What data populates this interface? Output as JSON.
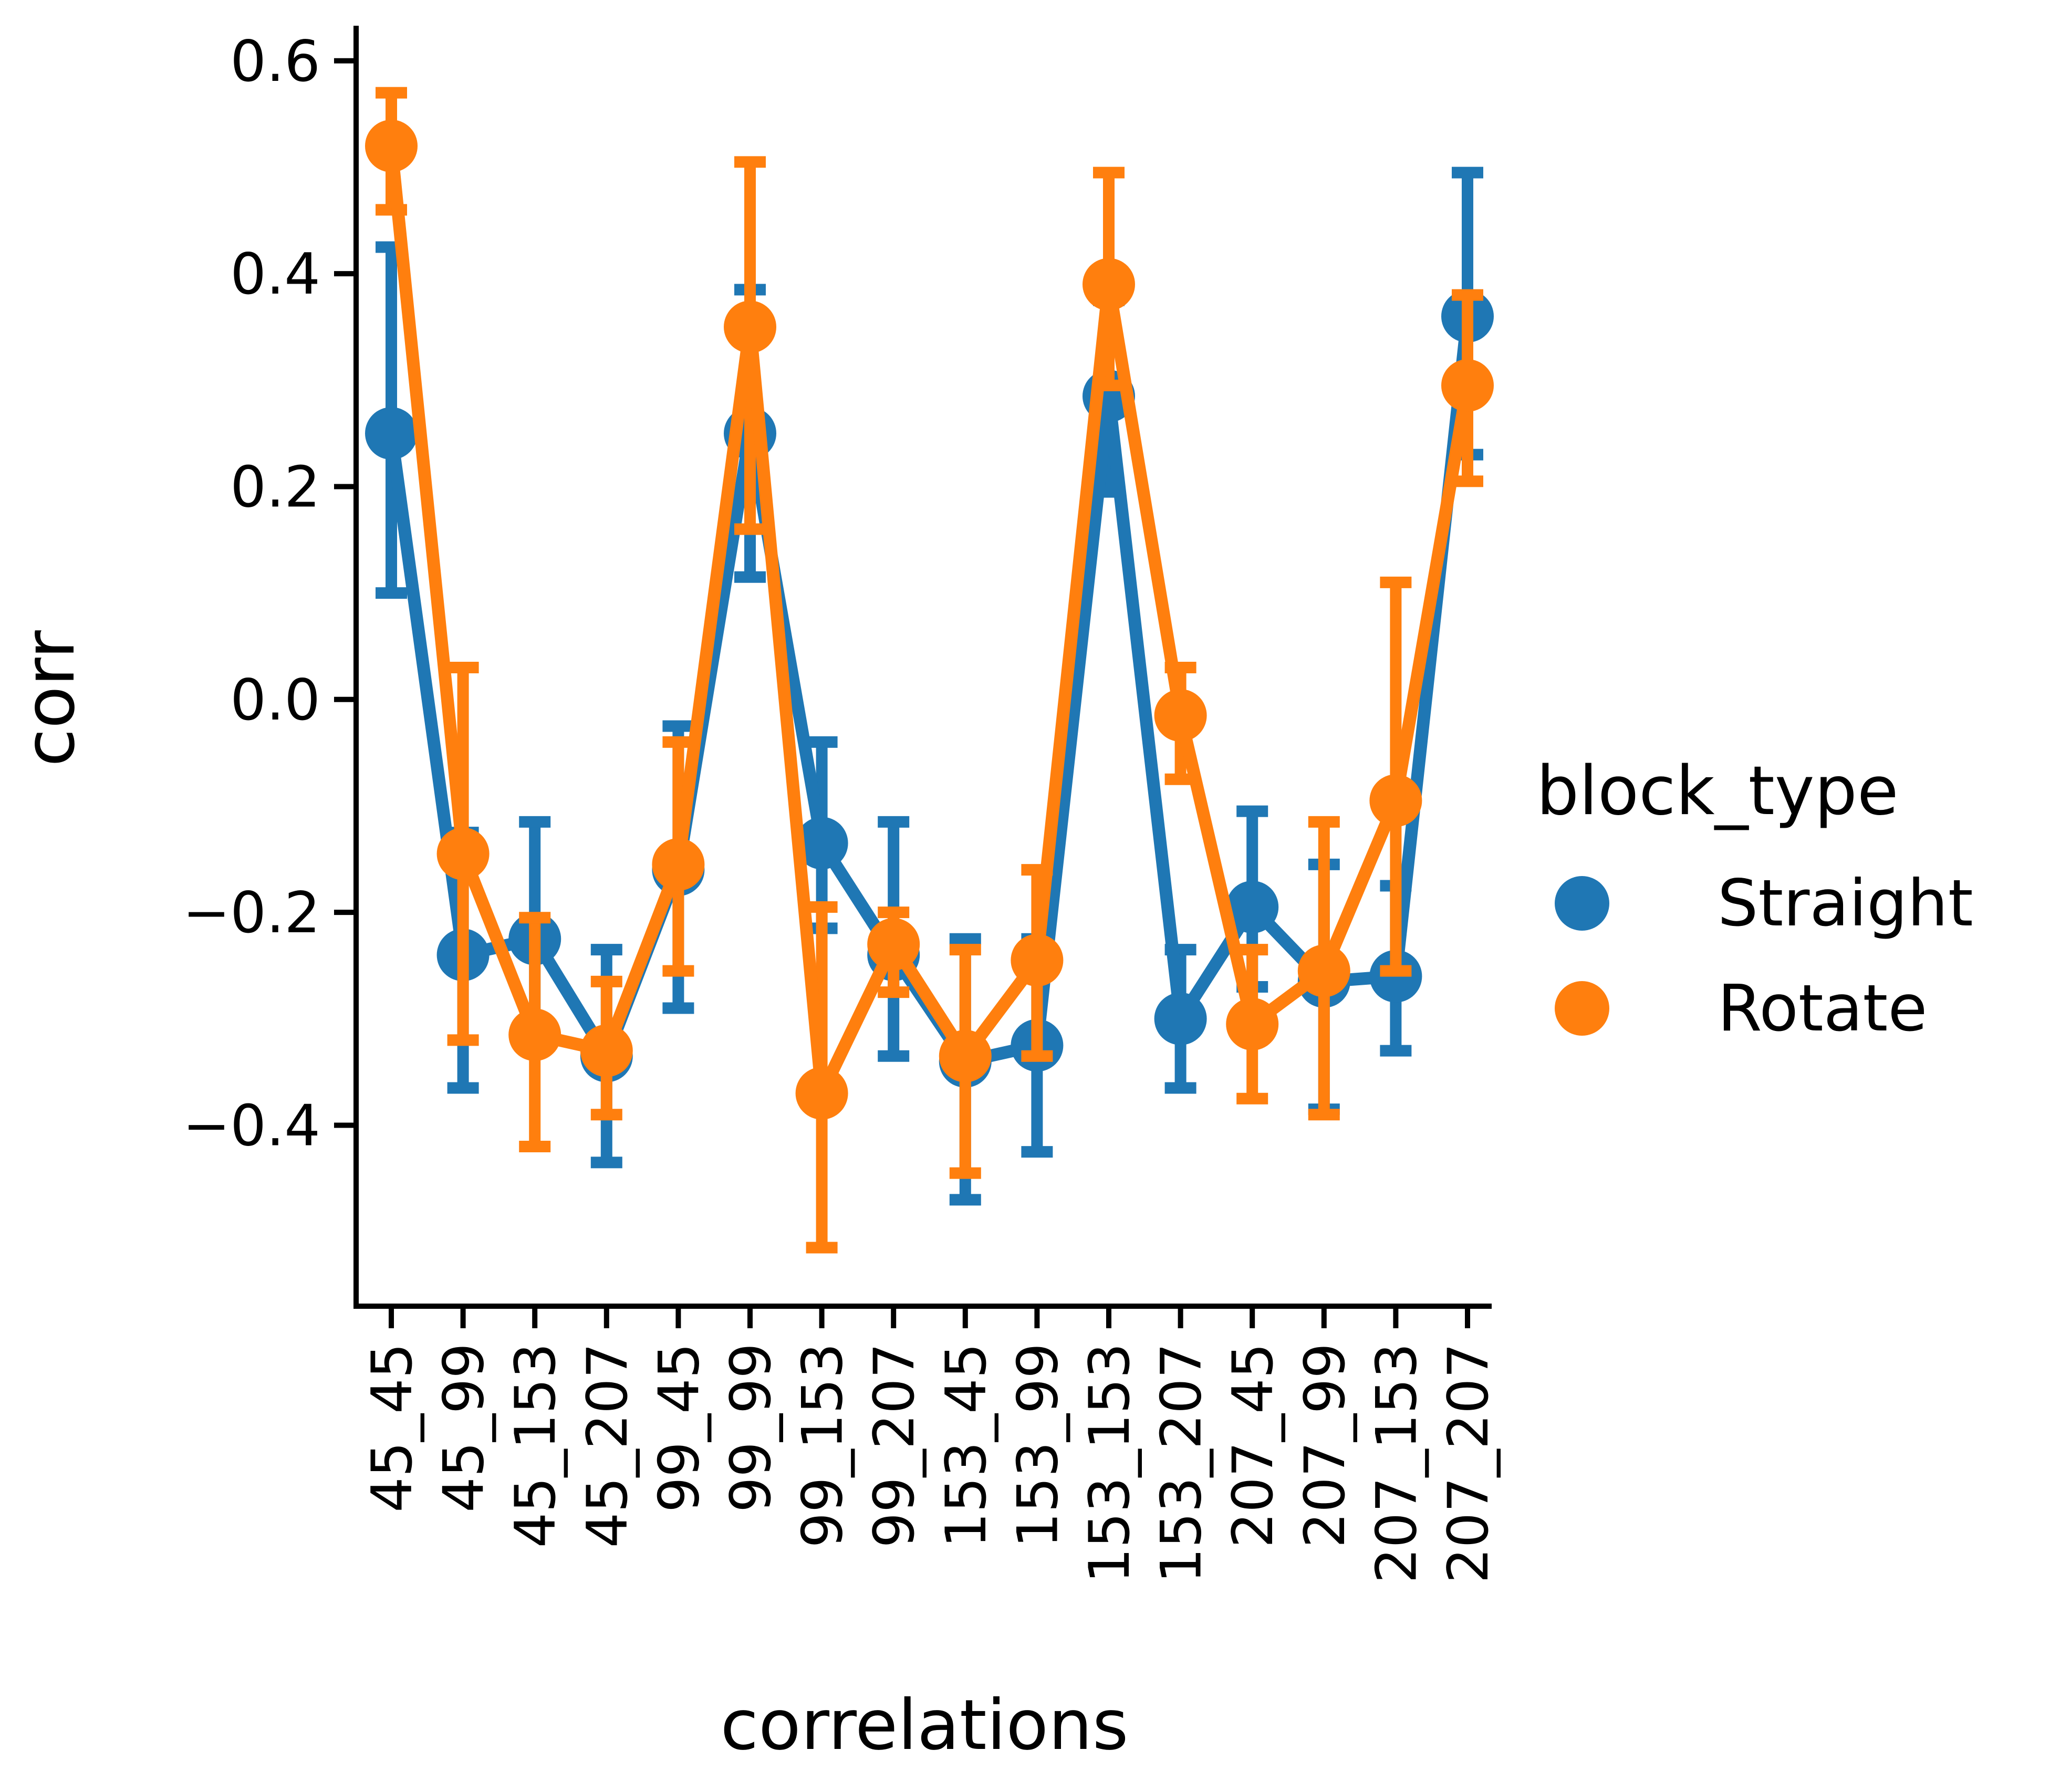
{
  "chart_data": {
    "type": "line",
    "xlabel": "correlations",
    "ylabel": "corr",
    "ylim": [
      -0.57,
      0.63
    ],
    "yticks": [
      -0.4,
      -0.2,
      0.0,
      0.2,
      0.4,
      0.6
    ],
    "ytick_labels": [
      "−0.4",
      "−0.2",
      "0.0",
      "0.2",
      "0.4",
      "0.6"
    ],
    "grid": false,
    "legend": {
      "title": "block_type",
      "placement": "right"
    },
    "categories": [
      "45_45",
      "45_99",
      "45_153",
      "45_207",
      "99_45",
      "99_99",
      "99_153",
      "99_207",
      "153_45",
      "153_99",
      "153_153",
      "153_207",
      "207_45",
      "207_99",
      "207_153",
      "207_207"
    ],
    "series": [
      {
        "name": "Straight",
        "color": "#1f77b4",
        "values": [
          0.25,
          -0.24,
          -0.225,
          -0.335,
          -0.16,
          0.25,
          -0.135,
          -0.24,
          -0.34,
          -0.325,
          0.285,
          -0.3,
          -0.195,
          -0.265,
          -0.26,
          0.36
        ],
        "err_low": [
          0.1,
          -0.365,
          -0.31,
          -0.435,
          -0.29,
          0.115,
          -0.215,
          -0.335,
          -0.47,
          -0.425,
          0.195,
          -0.365,
          -0.27,
          -0.385,
          -0.33,
          0.23
        ],
        "err_high": [
          0.425,
          -0.125,
          -0.115,
          -0.235,
          -0.025,
          0.385,
          -0.04,
          -0.115,
          -0.225,
          -0.225,
          0.375,
          -0.235,
          -0.105,
          -0.155,
          -0.175,
          0.495
        ]
      },
      {
        "name": "Rotate",
        "color": "#ff7f0e",
        "values": [
          0.52,
          -0.145,
          -0.315,
          -0.33,
          -0.155,
          0.35,
          -0.37,
          -0.23,
          -0.335,
          -0.245,
          0.39,
          -0.015,
          -0.305,
          -0.255,
          -0.095,
          0.295
        ],
        "err_low": [
          0.46,
          -0.32,
          -0.42,
          -0.39,
          -0.255,
          0.16,
          -0.515,
          -0.275,
          -0.445,
          -0.335,
          0.295,
          -0.075,
          -0.375,
          -0.39,
          -0.255,
          0.205
        ],
        "err_high": [
          0.57,
          0.03,
          -0.205,
          -0.265,
          -0.04,
          0.505,
          -0.195,
          -0.2,
          -0.235,
          -0.16,
          0.495,
          0.03,
          -0.235,
          -0.115,
          0.11,
          0.38
        ]
      }
    ]
  }
}
